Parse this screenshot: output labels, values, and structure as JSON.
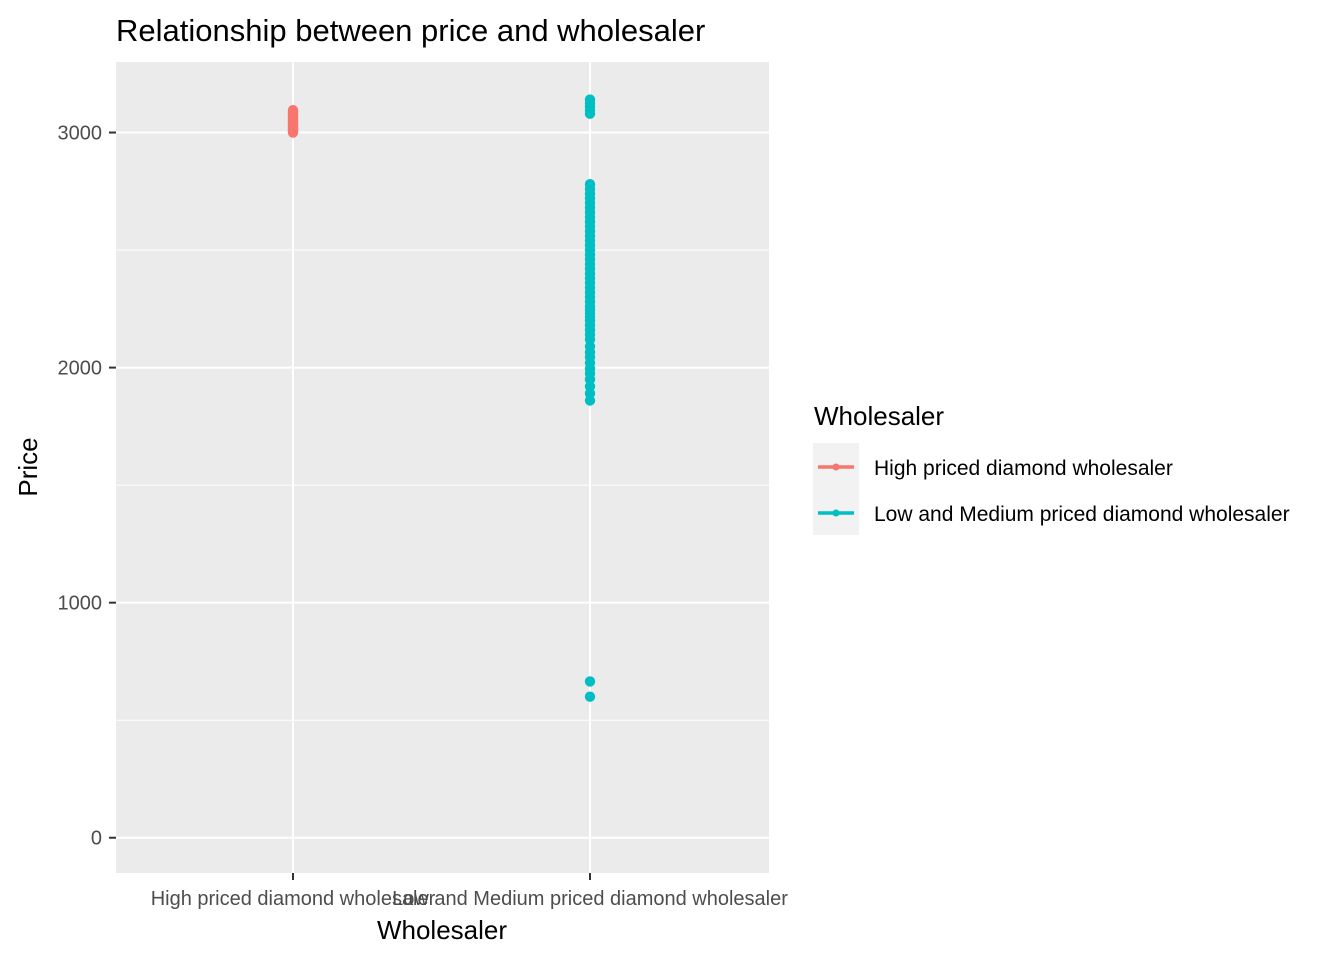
{
  "chart_data": {
    "type": "scatter",
    "title": "Relationship between price and wholesaler",
    "xlabel": "Wholesaler",
    "ylabel": "Price",
    "categories": [
      "High priced diamond wholesaler",
      "Low and Medium priced diamond wholesaler"
    ],
    "ylim": [
      -150,
      3300
    ],
    "yticks": [
      0,
      1000,
      2000,
      3000
    ],
    "grid": true,
    "legend": {
      "title": "Wholesaler",
      "position": "right",
      "entries": [
        "High priced diamond wholesaler",
        "Low and Medium priced diamond wholesaler"
      ]
    },
    "series": [
      {
        "name": "High priced diamond wholesaler",
        "color": "#F8766D",
        "x": "High priced diamond wholesaler",
        "values": [
          3000,
          3005,
          3010,
          3015,
          3020,
          3025,
          3030,
          3035,
          3040,
          3045,
          3050,
          3055,
          3060,
          3065,
          3070,
          3075,
          3080,
          3085,
          3090,
          3095
        ]
      },
      {
        "name": "Low and Medium priced diamond wholesaler",
        "color": "#00BFC4",
        "x": "Low and Medium priced diamond wholesaler",
        "values": [
          600,
          665,
          1860,
          1890,
          1920,
          1950,
          1975,
          1995,
          2020,
          2045,
          2065,
          2090,
          2120,
          2140,
          2160,
          2180,
          2200,
          2215,
          2230,
          2245,
          2260,
          2280,
          2300,
          2320,
          2340,
          2360,
          2380,
          2400,
          2420,
          2440,
          2460,
          2480,
          2500,
          2520,
          2540,
          2560,
          2580,
          2600,
          2620,
          2640,
          2660,
          2680,
          2700,
          2720,
          2740,
          2760,
          2780,
          3080,
          3095,
          3110,
          3125,
          3140
        ]
      }
    ]
  }
}
